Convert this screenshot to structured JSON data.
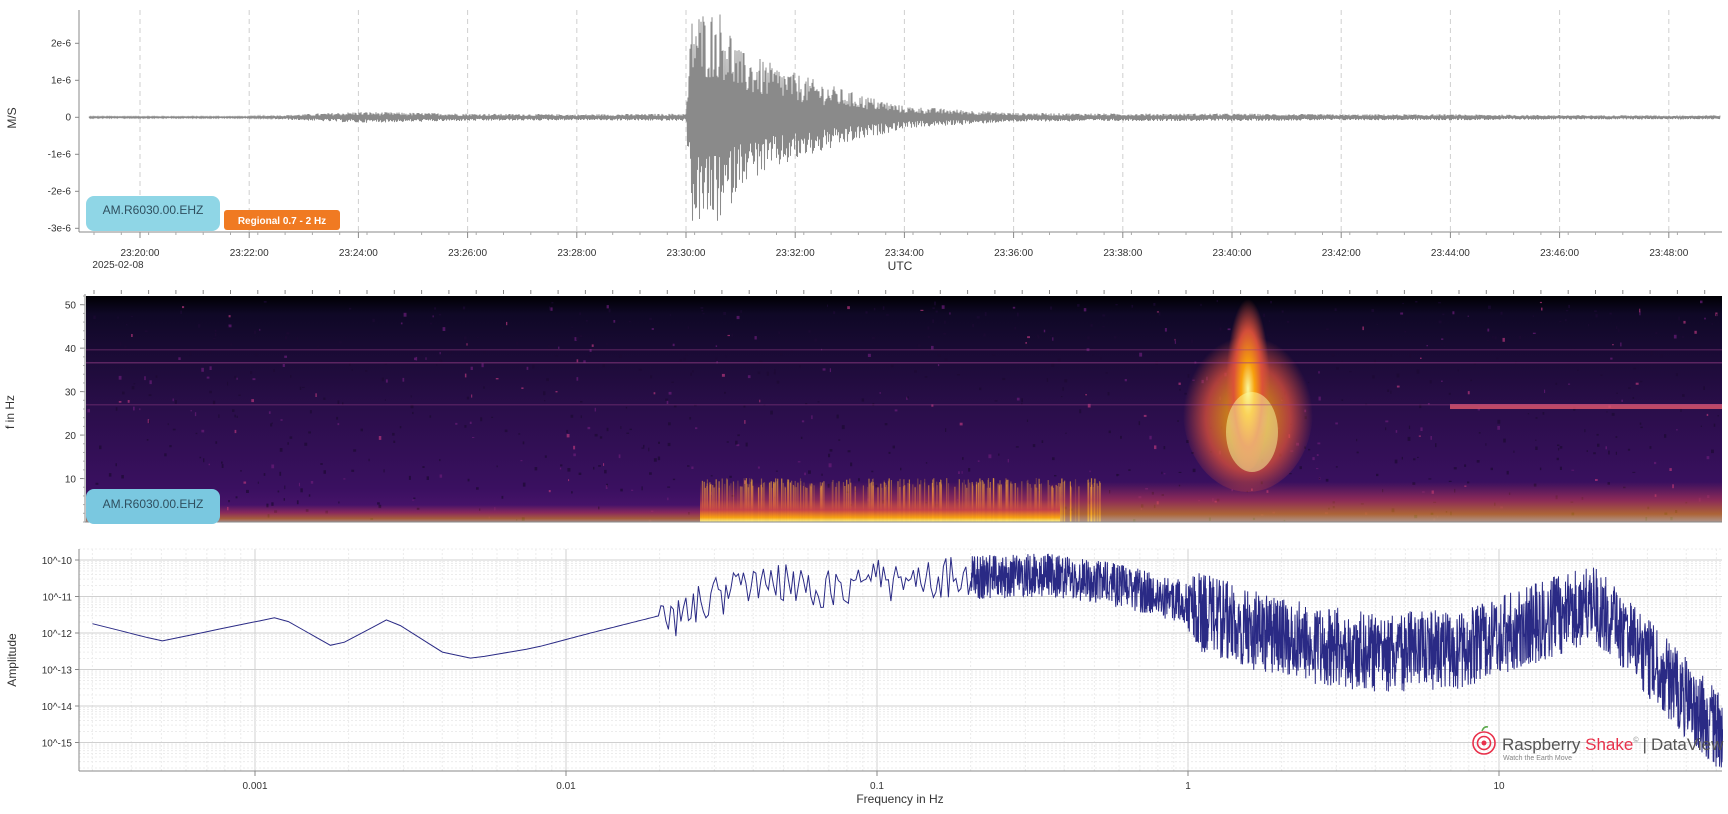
{
  "colors": {
    "waveform": "#8a8a8a",
    "spectrum": "#2a2a85",
    "station_pill": "#8fd6e6",
    "spec_station_pill": "#7ac8e0",
    "filter_pill": "#f07a22",
    "brand_red": "#e8304a"
  },
  "waveform": {
    "station": "AM.R6030.00.EHZ",
    "filter": "Regional 0.7 - 2 Hz",
    "ylabel": "M/S",
    "xlabel": "UTC",
    "date": "2025-02-08",
    "yticks": [
      "2e-6",
      "1e-6",
      "0",
      "-1e-6",
      "-2e-6",
      "-3e-6"
    ],
    "xticks": [
      "23:20:00",
      "23:22:00",
      "23:24:00",
      "23:26:00",
      "23:28:00",
      "23:30:00",
      "23:32:00",
      "23:34:00",
      "23:36:00",
      "23:38:00",
      "23:40:00",
      "23:42:00",
      "23:44:00",
      "23:46:00",
      "23:48:00"
    ]
  },
  "spectrogram": {
    "station": "AM.R6030.00.EHZ",
    "ylabel": "f in Hz",
    "yticks": [
      "50",
      "40",
      "30",
      "20",
      "10"
    ]
  },
  "spectrum": {
    "ylabel": "Amplitude",
    "xlabel": "Frequency in Hz",
    "yticks": [
      "10^-10",
      "10^-11",
      "10^-12",
      "10^-13",
      "10^-14",
      "10^-15"
    ],
    "xticks": [
      "0.001",
      "0.01",
      "0.1",
      "1",
      "10"
    ]
  },
  "brand": {
    "name_a": "Raspberry ",
    "name_b": "Shake",
    "mark": "©",
    "separator": "|",
    "product": "DataView",
    "tagline": "Watch the Earth Move",
    "logo_icon": "shake-logo-icon"
  },
  "chart_data": [
    {
      "type": "line",
      "x": [
        "23:20:00",
        "23:22:00",
        "23:24:00",
        "23:26:00",
        "23:28:00",
        "23:30:00",
        "23:30:40",
        "23:31:00",
        "23:32:00",
        "23:33:00",
        "23:34:00",
        "23:36:00",
        "23:38:00",
        "23:40:00",
        "23:42:00",
        "23:44:00",
        "23:46:00",
        "23:48:00"
      ],
      "series": [
        {
          "values": [
            2e-08,
            2e-08,
            1.5e-07,
            1e-07,
            8e-08,
            1e-07,
            2.9e-06,
            1.8e-06,
            1.2e-06,
            7e-07,
            3e-07,
            1.2e-07,
            1e-07,
            1e-07,
            8e-08,
            8e-08,
            6e-08,
            5e-08
          ]
        }
      ],
      "xlabel": "UTC",
      "ylabel": "M/S",
      "ylim": [
        -3.1e-06,
        2.9e-06
      ]
    },
    {
      "type": "heatmap",
      "ylabel": "f in Hz",
      "ylim": [
        0,
        52
      ]
    },
    {
      "type": "line",
      "x": [
        0.0003,
        0.0005,
        0.0012,
        0.0018,
        0.0027,
        0.004,
        0.005,
        0.008,
        0.012,
        0.02,
        0.03,
        0.045,
        0.07,
        0.1,
        0.2,
        0.35,
        0.6,
        1.0,
        2.0,
        4.0,
        8.0,
        20.0,
        50.0
      ],
      "series": [
        {
          "values": [
            1.8e-12,
            6e-13,
            2.8e-12,
            4e-13,
            2.5e-12,
            3e-13,
            2e-13,
            4e-13,
            1e-12,
            3e-12,
            1.5e-11,
            5e-11,
            2e-11,
            4e-11,
            5e-11,
            6e-11,
            3e-11,
            1e-11,
            1.5e-12,
            6e-13,
            8e-13,
            1.5e-11,
            5e-15
          ]
        }
      ],
      "xlabel": "Frequency in Hz",
      "ylabel": "Amplitude",
      "xscale": "log",
      "yscale": "log",
      "xlim": [
        0.0003,
        55
      ],
      "ylim": [
        1e-16,
        2e-10
      ],
      "grid": true
    }
  ]
}
